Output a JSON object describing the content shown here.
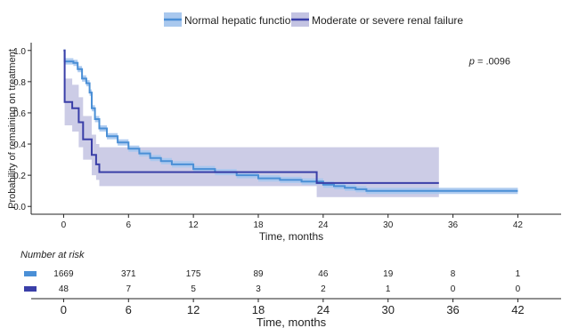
{
  "chart_data": {
    "type": "line",
    "subtype": "kaplan-meier step plot with confidence bands",
    "xlabel": "Time, months",
    "ylabel": "Probability of remaining on treatment",
    "xlim": [
      -3,
      46
    ],
    "ylim": [
      -0.05,
      1.05
    ],
    "x_ticks": [
      0,
      6,
      12,
      18,
      24,
      30,
      36,
      42
    ],
    "y_ticks": [
      0.0,
      0.2,
      0.4,
      0.6,
      0.8,
      1.0
    ],
    "y_tick_labels": [
      "0.0",
      "0.2",
      "0.4",
      "0.6",
      "0.8",
      "1.0"
    ],
    "grid": false,
    "legend_position": "top",
    "annotation": {
      "label": "p",
      "text": " = .0096",
      "x": 37.5,
      "y": 0.91
    },
    "series": [
      {
        "name": "Normal hepatic function",
        "color": "#4a8fd6",
        "band_color": "#a9c8ee",
        "points": [
          [
            0,
            1.0
          ],
          [
            0.1,
            0.93
          ],
          [
            0.9,
            0.92
          ],
          [
            1.3,
            0.88
          ],
          [
            1.7,
            0.82
          ],
          [
            2.1,
            0.79
          ],
          [
            2.4,
            0.73
          ],
          [
            2.6,
            0.63
          ],
          [
            2.9,
            0.56
          ],
          [
            3.3,
            0.5
          ],
          [
            4,
            0.45
          ],
          [
            5,
            0.41
          ],
          [
            6,
            0.37
          ],
          [
            7,
            0.34
          ],
          [
            8,
            0.31
          ],
          [
            9,
            0.29
          ],
          [
            10,
            0.27
          ],
          [
            12,
            0.24
          ],
          [
            14,
            0.22
          ],
          [
            16,
            0.2
          ],
          [
            18,
            0.18
          ],
          [
            20,
            0.17
          ],
          [
            22,
            0.16
          ],
          [
            24,
            0.14
          ],
          [
            25,
            0.13
          ],
          [
            26,
            0.12
          ],
          [
            27,
            0.11
          ],
          [
            28,
            0.1
          ],
          [
            42,
            0.1
          ]
        ],
        "band": [
          [
            0,
            1.0,
            1.0
          ],
          [
            0.1,
            0.91,
            0.95
          ],
          [
            0.9,
            0.9,
            0.94
          ],
          [
            1.3,
            0.86,
            0.9
          ],
          [
            1.7,
            0.8,
            0.84
          ],
          [
            2.1,
            0.77,
            0.81
          ],
          [
            2.4,
            0.71,
            0.75
          ],
          [
            2.6,
            0.61,
            0.65
          ],
          [
            2.9,
            0.54,
            0.58
          ],
          [
            3.3,
            0.48,
            0.52
          ],
          [
            4,
            0.43,
            0.47
          ],
          [
            5,
            0.39,
            0.43
          ],
          [
            6,
            0.35,
            0.39
          ],
          [
            7,
            0.32,
            0.36
          ],
          [
            8,
            0.29,
            0.33
          ],
          [
            9,
            0.27,
            0.31
          ],
          [
            10,
            0.25,
            0.29
          ],
          [
            12,
            0.22,
            0.26
          ],
          [
            14,
            0.2,
            0.24
          ],
          [
            16,
            0.18,
            0.22
          ],
          [
            18,
            0.16,
            0.2
          ],
          [
            20,
            0.15,
            0.19
          ],
          [
            22,
            0.14,
            0.18
          ],
          [
            24,
            0.12,
            0.16
          ],
          [
            25,
            0.11,
            0.15
          ],
          [
            26,
            0.1,
            0.14
          ],
          [
            27,
            0.09,
            0.13
          ],
          [
            28,
            0.08,
            0.12
          ],
          [
            42,
            0.08,
            0.12
          ]
        ]
      },
      {
        "name": "Moderate or severe renal failure",
        "color": "#3a3fa8",
        "band_color": "#c3c3e2",
        "points": [
          [
            0,
            1.0
          ],
          [
            0.1,
            0.67
          ],
          [
            0.8,
            0.63
          ],
          [
            1.4,
            0.54
          ],
          [
            1.8,
            0.43
          ],
          [
            2.6,
            0.33
          ],
          [
            3.0,
            0.27
          ],
          [
            3.3,
            0.22
          ],
          [
            23.3,
            0.22
          ],
          [
            23.4,
            0.15
          ],
          [
            34.7,
            0.15
          ]
        ],
        "band": [
          [
            0,
            1.0,
            1.0
          ],
          [
            0.1,
            0.52,
            0.82
          ],
          [
            0.8,
            0.48,
            0.78
          ],
          [
            1.4,
            0.38,
            0.7
          ],
          [
            1.8,
            0.3,
            0.58
          ],
          [
            2.6,
            0.2,
            0.46
          ],
          [
            3.0,
            0.17,
            0.4
          ],
          [
            3.3,
            0.13,
            0.38
          ],
          [
            23.3,
            0.13,
            0.38
          ],
          [
            23.4,
            0.06,
            0.38
          ],
          [
            34.7,
            0.06,
            0.38
          ]
        ]
      }
    ],
    "risk_table": {
      "title": "Number at risk",
      "xlabel": "Time, months",
      "x": [
        0,
        6,
        12,
        18,
        24,
        30,
        36,
        42
      ],
      "rows": [
        {
          "name": "Normal hepatic function",
          "color": "#4a8fd6",
          "values": [
            "1669",
            "371",
            "175",
            "89",
            "46",
            "19",
            "8",
            "1"
          ]
        },
        {
          "name": "Moderate or severe renal failure",
          "color": "#3a3fa8",
          "values": [
            "48",
            "7",
            "5",
            "3",
            "2",
            "1",
            "0",
            "0"
          ]
        }
      ]
    }
  }
}
